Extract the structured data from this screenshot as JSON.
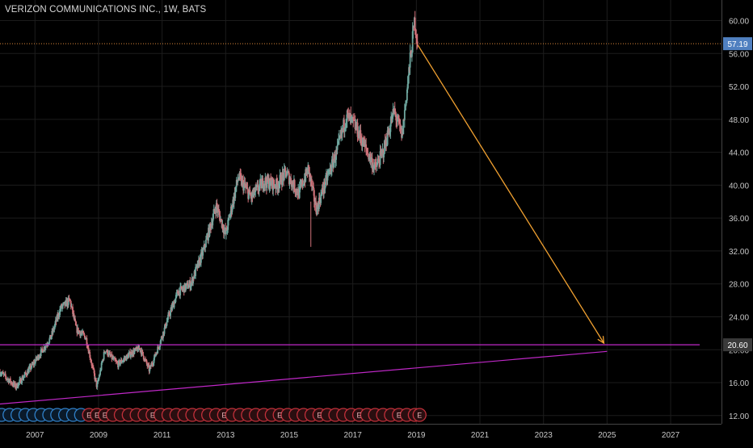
{
  "chart_data": {
    "type": "candlestick",
    "title": "VERIZON COMMUNICATIONS INC., 1W, BATS",
    "x_range": [
      2005.9,
      2028.6
    ],
    "y_range": [
      11.0,
      62.5
    ],
    "x_ticks": [
      "2007",
      "2009",
      "2011",
      "2013",
      "2015",
      "2017",
      "2019",
      "2021",
      "2023",
      "2025",
      "2027"
    ],
    "x_tick_years": [
      2007,
      2009,
      2011,
      2013,
      2015,
      2017,
      2019,
      2021,
      2023,
      2025,
      2027
    ],
    "y_ticks": [
      12,
      16,
      20,
      24,
      28,
      32,
      36,
      40,
      44,
      48,
      52,
      56,
      60
    ],
    "y_tick_labels": [
      "12.00",
      "16.00",
      "20.00",
      "24.00",
      "28.00",
      "32.00",
      "36.00",
      "40.00",
      "44.00",
      "48.00",
      "52.00",
      "56.00",
      "60.00"
    ],
    "price_path": [
      [
        2005.9,
        17.3
      ],
      [
        2006.4,
        15.5
      ],
      [
        2006.9,
        18.0
      ],
      [
        2007.5,
        21.5
      ],
      [
        2007.8,
        25.0
      ],
      [
        2008.1,
        26.0
      ],
      [
        2008.3,
        22.5
      ],
      [
        2008.6,
        21.5
      ],
      [
        2008.8,
        18.0
      ],
      [
        2008.95,
        15.5
      ],
      [
        2009.2,
        20.0
      ],
      [
        2009.6,
        18.2
      ],
      [
        2010.0,
        19.5
      ],
      [
        2010.3,
        20.2
      ],
      [
        2010.6,
        17.5
      ],
      [
        2010.9,
        20.5
      ],
      [
        2011.2,
        24.0
      ],
      [
        2011.5,
        27.0
      ],
      [
        2011.9,
        28.0
      ],
      [
        2012.3,
        32.0
      ],
      [
        2012.7,
        37.5
      ],
      [
        2013.0,
        34.0
      ],
      [
        2013.4,
        41.0
      ],
      [
        2013.8,
        38.5
      ],
      [
        2014.2,
        40.5
      ],
      [
        2014.6,
        40.0
      ],
      [
        2014.9,
        41.5
      ],
      [
        2015.3,
        39.0
      ],
      [
        2015.6,
        42.0
      ],
      [
        2015.85,
        37.0
      ],
      [
        2016.2,
        41.0
      ],
      [
        2016.5,
        44.0
      ],
      [
        2016.8,
        48.5
      ],
      [
        2017.1,
        47.0
      ],
      [
        2017.4,
        44.5
      ],
      [
        2017.7,
        42.0
      ],
      [
        2017.95,
        44.0
      ],
      [
        2018.3,
        49.0
      ],
      [
        2018.55,
        46.0
      ],
      [
        2018.8,
        55.0
      ],
      [
        2018.95,
        60.0
      ],
      [
        2019.05,
        57.0
      ]
    ],
    "current_price": {
      "label": "57.19",
      "value": 57.19
    },
    "horizontal_line": {
      "label": "20.60",
      "value": 20.6,
      "color": "#c028c8"
    },
    "trendline": {
      "from": [
        2005.9,
        13.4
      ],
      "to": [
        2025.0,
        19.8
      ],
      "color": "#c028c8"
    },
    "forecast_arrow": {
      "from": [
        2019.05,
        57.0
      ],
      "to": [
        2024.9,
        20.8
      ],
      "color": "#f0a030"
    },
    "earnings_markers": {
      "blue_years": [
        2005.95,
        2006.2,
        2006.45,
        2006.7,
        2006.95,
        2007.2,
        2007.45,
        2007.7,
        2007.95,
        2008.2,
        2008.45
      ],
      "red_years": [
        2008.7,
        2008.95,
        2009.2,
        2009.45,
        2009.7,
        2009.95,
        2010.2,
        2010.45,
        2010.7,
        2010.95,
        2011.2,
        2011.45,
        2011.7,
        2011.95,
        2012.2,
        2012.45,
        2012.7,
        2012.95,
        2013.2,
        2013.45,
        2013.7,
        2013.95,
        2014.2,
        2014.45,
        2014.7,
        2014.95,
        2015.2,
        2015.45,
        2015.7,
        2015.95,
        2016.2,
        2016.45,
        2016.7,
        2016.95,
        2017.2,
        2017.45,
        2017.7,
        2017.95,
        2018.2,
        2018.45,
        2018.7,
        2018.95,
        2019.1
      ],
      "labeled_years": [
        2008.7,
        2008.95,
        2009.2,
        2010.7,
        2012.95,
        2014.7,
        2015.95,
        2017.2,
        2018.45,
        2019.1
      ],
      "label": "E"
    },
    "colors": {
      "background": "#000000",
      "grid": "#1c1c1c",
      "axis_text": "#c8c8c8",
      "price_badge": "#5080c0",
      "hline_badge": "#3a3a3a",
      "bull": "#6fa8a0",
      "bear": "#d0727a",
      "marker_red": "#c0303a",
      "marker_blue": "#3080c8",
      "marker_fill": "#2a0e10"
    }
  }
}
